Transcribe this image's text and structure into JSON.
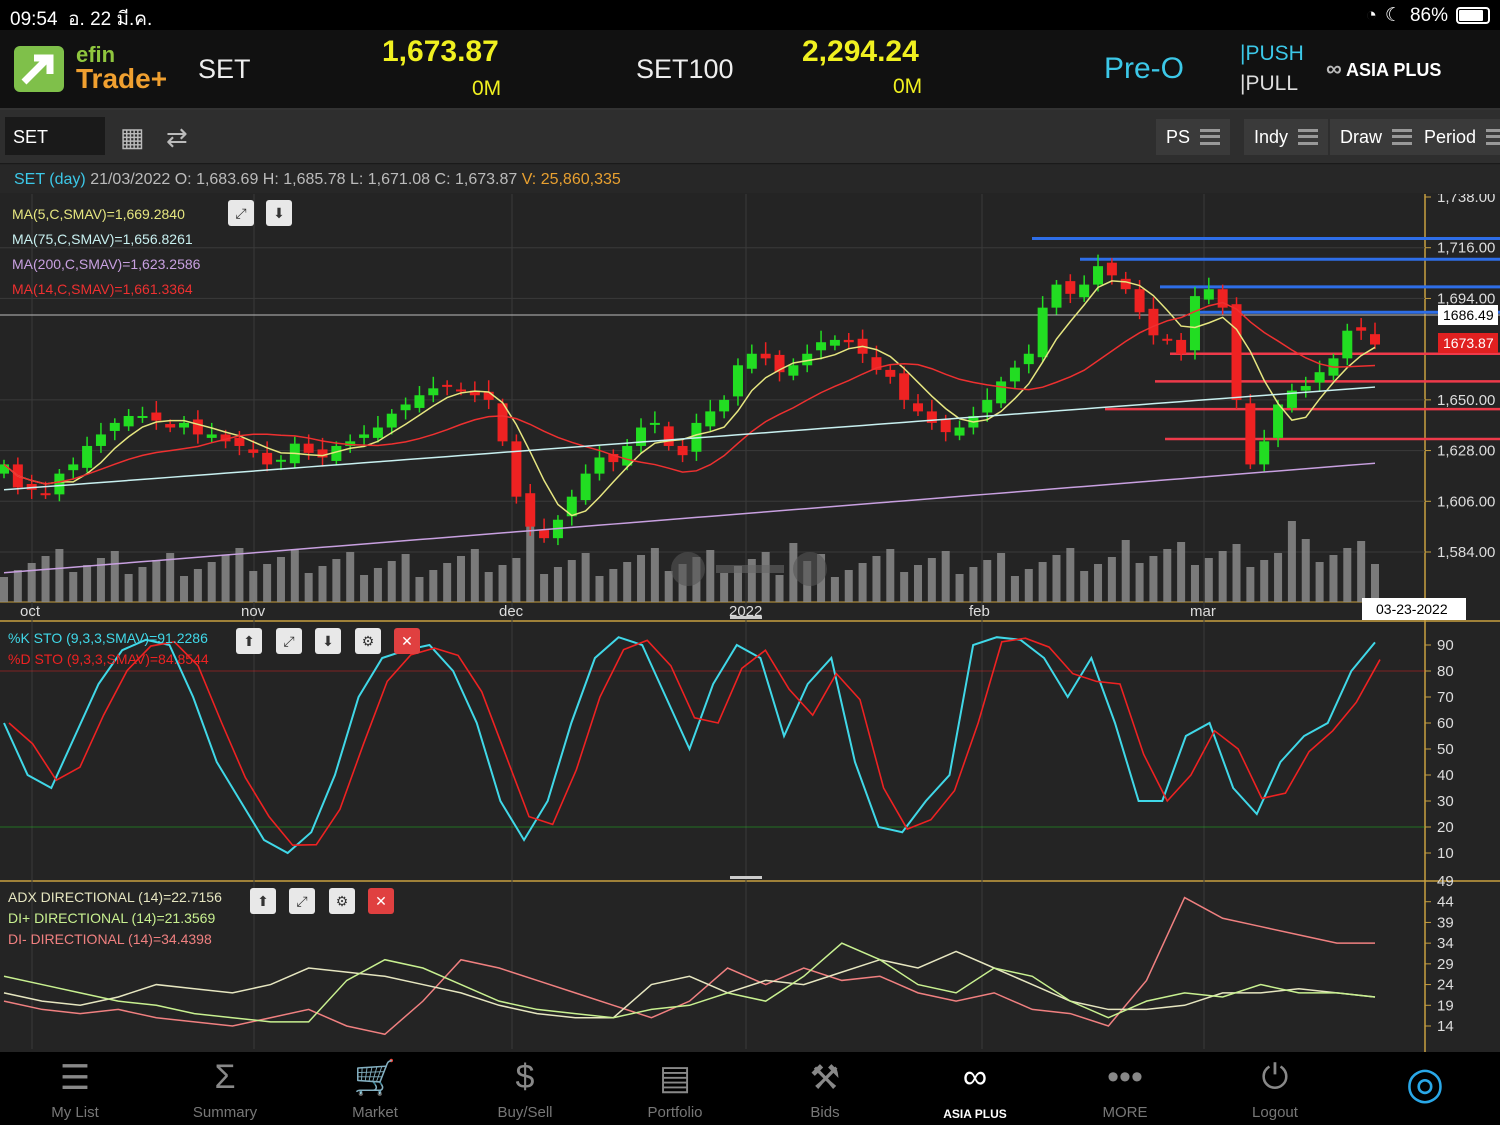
{
  "status": {
    "time": "09:54",
    "date": "อ. 22 มี.ค.",
    "battery": "86%"
  },
  "header": {
    "logo_top": "efin",
    "logo_bottom": "Trade+",
    "sym1": "SET",
    "val1": "1,673.87",
    "vol1": "0M",
    "sym2": "SET100",
    "val2": "2,294.24",
    "vol2": "0M",
    "session": "Pre-O",
    "push": "PUSH",
    "pull": "PULL",
    "broker": "ASIA PLUS"
  },
  "toolbar": {
    "symbol": "SET",
    "ps": "PS",
    "indy": "Indy",
    "draw": "Draw",
    "period": "Period"
  },
  "info": {
    "label": "SET (day)",
    "date": "21/03/2022",
    "o_label": "O:",
    "o": "1,683.69",
    "h_label": "H:",
    "h": "1,685.78",
    "l_label": "L:",
    "l": "1,671.08",
    "c_label": "C:",
    "c": "1,673.87",
    "v_label": "V:",
    "v": "25,860,335"
  },
  "legend": {
    "ma5": "MA(5,C,SMAV)=1,669.2840",
    "ma75": "MA(75,C,SMAV)=1,656.8261",
    "ma200": "MA(200,C,SMAV)=1,623.2586",
    "ma14": "MA(14,C,SMAV)=1,661.3364",
    "stok": "%K STO (9,3,3,SMAV)=91.2286",
    "stod": "%D STO (9,3,3,SMAV)=84.8544",
    "adx": "ADX DIRECTIONAL (14)=22.7156",
    "dip": "DI+ DIRECTIONAL (14)=21.3569",
    "dim": "DI- DIRECTIONAL (14)=34.4398"
  },
  "price_axis": [
    "1,738.00",
    "1,716.00",
    "1,694.00",
    "1,650.00",
    "1,628.00",
    "1,606.00",
    "1,584.00"
  ],
  "markers": {
    "crosshair": "1686.49",
    "last": "1673.87",
    "date": "03-23-2022"
  },
  "x_labels": [
    "oct",
    "nov",
    "dec",
    "2022",
    "feb",
    "mar"
  ],
  "sto_axis": [
    "90",
    "80",
    "70",
    "60",
    "50",
    "40",
    "30",
    "20",
    "10"
  ],
  "adx_axis": [
    "49",
    "44",
    "39",
    "34",
    "29",
    "24",
    "19",
    "14"
  ],
  "colors": {
    "up": "#22dd22",
    "down": "#ee2222",
    "ma5": "#e6e680",
    "ma75": "#c8f0f0",
    "ma200": "#c8a0e0",
    "ma14": "#ee3030",
    "stok": "#40d8e8",
    "stod": "#ee2222"
  },
  "nav": [
    {
      "label": "My List",
      "icon": "list-icon"
    },
    {
      "label": "Summary",
      "icon": "sigma-icon"
    },
    {
      "label": "Market",
      "icon": "cart-icon"
    },
    {
      "label": "Buy/Sell",
      "icon": "dollar-icon"
    },
    {
      "label": "Portfolio",
      "icon": "document-icon"
    },
    {
      "label": "Bids",
      "icon": "gavel-icon"
    },
    {
      "label": "ASIA PLUS",
      "icon": "asiaplus-logo"
    },
    {
      "label": "MORE",
      "icon": "more-icon"
    },
    {
      "label": "Logout",
      "icon": "power-icon"
    },
    {
      "label": "",
      "icon": "refresh-circle-icon"
    }
  ]
}
